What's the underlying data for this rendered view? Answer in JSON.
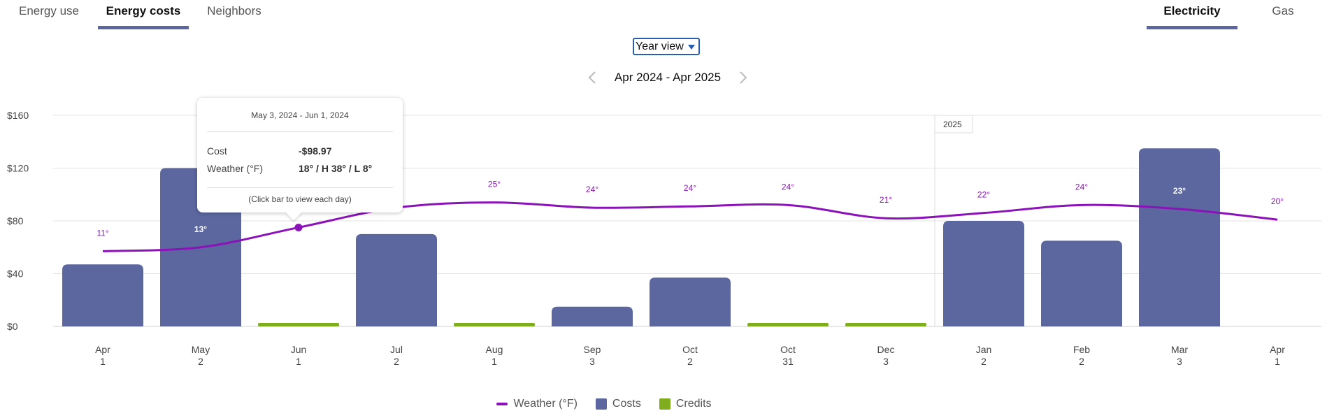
{
  "tabs": {
    "left": [
      {
        "label": "Energy use",
        "active": false
      },
      {
        "label": "Energy costs",
        "active": true
      },
      {
        "label": "Neighbors",
        "active": false
      }
    ],
    "right": [
      {
        "label": "Electricity",
        "active": true
      },
      {
        "label": "Gas",
        "active": false
      }
    ]
  },
  "view_select": {
    "value": "Year view"
  },
  "range": {
    "label": "Apr 2024 - Apr 2025"
  },
  "colors": {
    "cost": "#5b679e",
    "credit": "#7fad1e",
    "weather": "#8b12b8",
    "grid": "#e3e3e3",
    "accent": "#5b679e"
  },
  "tooltip": {
    "date": "May 3, 2024 - Jun 1, 2024",
    "cost_label": "Cost",
    "cost_value": "-$98.97",
    "weather_label": "Weather (°F)",
    "weather_value": "18° / H 38° / L 8°",
    "hint": "(Click bar to view each day)"
  },
  "legend": {
    "weather": "Weather (°F)",
    "costs": "Costs",
    "credits": "Credits"
  },
  "chart_data": {
    "type": "bar",
    "title": "",
    "xlabel": "",
    "ylabel": "",
    "ylim": [
      0,
      160
    ],
    "y_ticks": [
      "$0",
      "$40",
      "$80",
      "$120",
      "$160"
    ],
    "y_tick_values": [
      0,
      40,
      80,
      120,
      160
    ],
    "year_marker": "2025",
    "year_marker_index": 9,
    "categories": [
      {
        "month": "Apr",
        "day": "1"
      },
      {
        "month": "May",
        "day": "2"
      },
      {
        "month": "Jun",
        "day": "1"
      },
      {
        "month": "Jul",
        "day": "2"
      },
      {
        "month": "Aug",
        "day": "1"
      },
      {
        "month": "Sep",
        "day": "3"
      },
      {
        "month": "Oct",
        "day": "2"
      },
      {
        "month": "Oct",
        "day": "31"
      },
      {
        "month": "Dec",
        "day": "3"
      },
      {
        "month": "Jan",
        "day": "2"
      },
      {
        "month": "Feb",
        "day": "2"
      },
      {
        "month": "Mar",
        "day": "3"
      },
      {
        "month": "Apr",
        "day": "1"
      }
    ],
    "series": [
      {
        "name": "Costs",
        "kind": "bar",
        "values": [
          47,
          120,
          null,
          70,
          null,
          15,
          37,
          null,
          null,
          80,
          65,
          135,
          null
        ]
      },
      {
        "name": "Credits",
        "kind": "bar",
        "values": [
          null,
          null,
          2.5,
          null,
          2.5,
          null,
          null,
          2.5,
          2.5,
          null,
          null,
          null,
          null
        ]
      },
      {
        "name": "Weather (°F)",
        "kind": "line",
        "values": [
          11,
          13,
          18,
          22,
          25,
          24,
          24,
          24,
          21,
          22,
          24,
          23,
          20
        ],
        "labels": [
          "11°",
          "13°",
          "",
          "",
          "25°",
          "24°",
          "24°",
          "24°",
          "21°",
          "22°",
          "24°",
          "23°",
          "20°"
        ],
        "plot_dollars": [
          57,
          60,
          75,
          90,
          94,
          90,
          91,
          92,
          82,
          86,
          92,
          89,
          81
        ]
      }
    ]
  }
}
